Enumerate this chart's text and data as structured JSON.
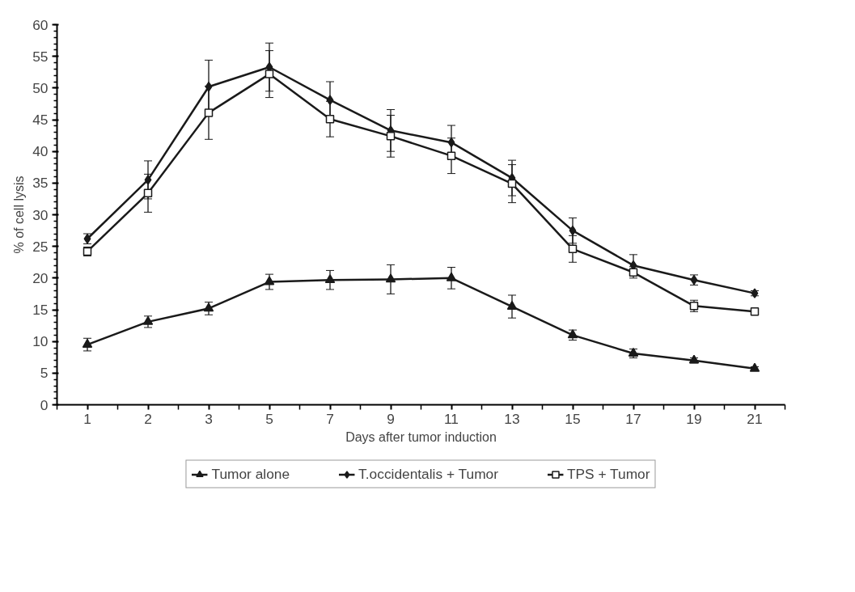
{
  "chart_data": {
    "type": "line",
    "xlabel": "Days after tumor induction",
    "ylabel": "% of cell lysis",
    "categories": [
      "1",
      "2",
      "3",
      "5",
      "7",
      "9",
      "11",
      "13",
      "15",
      "17",
      "19",
      "21"
    ],
    "ylim": [
      0,
      60
    ],
    "yticks": [
      0,
      5,
      10,
      15,
      20,
      25,
      30,
      35,
      40,
      45,
      50,
      55,
      60
    ],
    "grid": false,
    "legend": "bottom",
    "series": [
      {
        "name": "Tumor alone",
        "color": "#1a1a1a",
        "marker": "triangle",
        "values": [
          9.5,
          13.1,
          15.2,
          19.4,
          19.7,
          19.8,
          20.0,
          15.5,
          11.0,
          8.1,
          7.0,
          5.7
        ],
        "errors": [
          1.0,
          0.9,
          1.0,
          1.2,
          1.5,
          2.3,
          1.7,
          1.8,
          0.8,
          0.7,
          0.4,
          0.3
        ]
      },
      {
        "name": "T.occidentalis + Tumor",
        "color": "#1a1a1a",
        "marker": "diamond",
        "values": [
          26.2,
          35.5,
          50.2,
          53.3,
          48.1,
          43.3,
          41.4,
          35.8,
          27.5,
          22.0,
          19.7,
          17.6
        ],
        "errors": [
          0.8,
          3.0,
          4.2,
          3.8,
          2.9,
          3.3,
          2.7,
          2.8,
          2.0,
          1.7,
          0.8,
          0.4
        ]
      },
      {
        "name": "TPS + Tumor",
        "color": "#1a1a1a",
        "marker": "square",
        "values": [
          24.2,
          33.4,
          46.1,
          52.2,
          45.1,
          42.4,
          39.3,
          34.9,
          24.6,
          20.9,
          15.6,
          14.7
        ],
        "errors": [
          0.7,
          3.0,
          4.2,
          3.7,
          2.8,
          3.3,
          2.8,
          3.0,
          2.1,
          0.9,
          0.9,
          0.3
        ]
      }
    ]
  }
}
